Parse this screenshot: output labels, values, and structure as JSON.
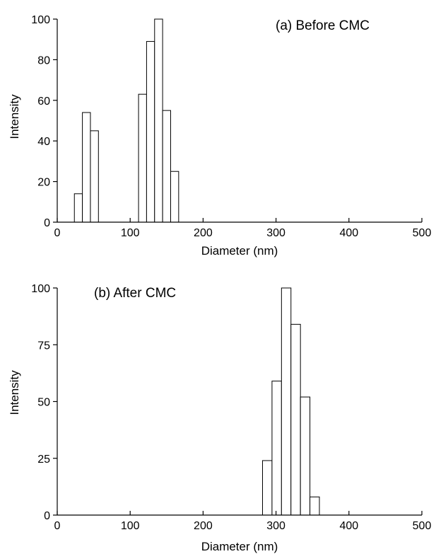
{
  "chart_data": [
    {
      "type": "bar",
      "title": "",
      "annotation": "(a) Before CMC",
      "xlabel": "Diameter (nm)",
      "ylabel": "Intensity",
      "xlim": [
        0,
        500
      ],
      "ylim": [
        0,
        100
      ],
      "xticks": [
        0,
        100,
        200,
        300,
        400,
        500
      ],
      "yticks": [
        0,
        20,
        40,
        60,
        80,
        100
      ],
      "bin_width": 11,
      "bars": [
        {
          "x": 29,
          "value": 14
        },
        {
          "x": 40,
          "value": 54
        },
        {
          "x": 51,
          "value": 45
        },
        {
          "x": 117,
          "value": 63
        },
        {
          "x": 128,
          "value": 89
        },
        {
          "x": 139,
          "value": 100
        },
        {
          "x": 150,
          "value": 55
        },
        {
          "x": 161,
          "value": 25
        }
      ],
      "grid": false
    },
    {
      "type": "bar",
      "title": "",
      "annotation": "(b) After CMC",
      "xlabel": "Diameter (nm)",
      "ylabel": "Intensity",
      "xlim": [
        0,
        500
      ],
      "ylim": [
        0,
        100
      ],
      "xticks": [
        0,
        100,
        200,
        300,
        400,
        500
      ],
      "yticks": [
        0,
        25,
        50,
        75,
        100
      ],
      "bin_width": 13,
      "bars": [
        {
          "x": 288,
          "value": 24
        },
        {
          "x": 301,
          "value": 59
        },
        {
          "x": 314,
          "value": 100
        },
        {
          "x": 327,
          "value": 84
        },
        {
          "x": 340,
          "value": 52
        },
        {
          "x": 353,
          "value": 8
        }
      ],
      "grid": false
    }
  ]
}
